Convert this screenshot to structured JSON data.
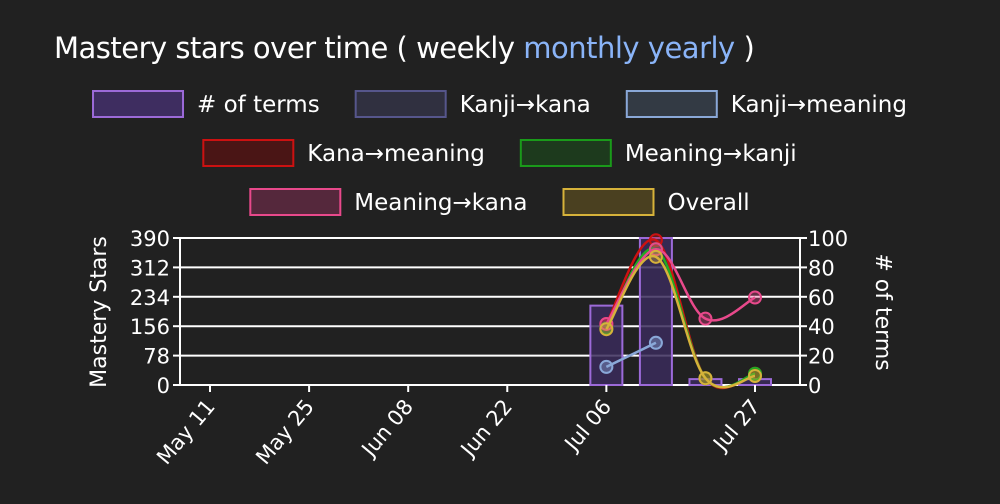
{
  "title": {
    "text": "Mastery stars over time",
    "open_paren": "(",
    "close_paren": ")",
    "periods": [
      "weekly",
      "monthly",
      "yearly"
    ],
    "active_period": "weekly"
  },
  "chart_data": {
    "type": "bar+line",
    "title": "Mastery stars over time",
    "categories": [
      "May 11",
      "May 25",
      "Jun 08",
      "Jun 22",
      "Jul 06",
      "Jul 27"
    ],
    "y_left": {
      "label": "Mastery Stars",
      "ticks": [
        0,
        78,
        156,
        234,
        312,
        390
      ],
      "range": [
        0,
        390
      ]
    },
    "y_right": {
      "label": "# of terms",
      "ticks": [
        0,
        20,
        40,
        60,
        80,
        100
      ],
      "range": [
        0,
        100
      ]
    },
    "x_ticks": [
      "May 11",
      "May 25",
      "Jun 08",
      "Jun 22",
      "Jul 06",
      "Jul 27"
    ],
    "x_tick_dates": [
      0,
      14,
      28,
      42,
      56,
      77
    ],
    "bar_series": {
      "name": "# of terms",
      "axis": "right",
      "color": "#9c6ad8",
      "x_dates": [
        56,
        63,
        70,
        77
      ],
      "values": [
        54,
        100,
        4,
        4
      ]
    },
    "line_series": [
      {
        "name": "Kanji→kana",
        "color": "#4a4a80",
        "x_dates": [
          56,
          63
        ],
        "values": [
          48,
          112
        ]
      },
      {
        "name": "Kanji→meaning",
        "color": "#8aa8d8",
        "x_dates": [
          56,
          63
        ],
        "values": [
          48,
          112
        ]
      },
      {
        "name": "Kana→meaning",
        "color": "#cc1111",
        "x_dates": [
          56,
          63,
          70,
          77
        ],
        "values": [
          162,
          384,
          18,
          30
        ]
      },
      {
        "name": "Meaning→kanji",
        "color": "#22aa22",
        "x_dates": [
          56,
          63,
          70,
          77
        ],
        "values": [
          150,
          360,
          18,
          30
        ]
      },
      {
        "name": "Meaning→kana",
        "color": "#e8498b",
        "x_dates": [
          56,
          63,
          70,
          77
        ],
        "values": [
          162,
          360,
          176,
          232
        ]
      },
      {
        "name": "Overall",
        "color": "#d6b23a",
        "x_dates": [
          56,
          63,
          70,
          77
        ],
        "values": [
          148,
          340,
          18,
          24
        ]
      }
    ],
    "legend": {
      "placement": "top",
      "items": [
        {
          "label": "# of terms",
          "border": "#9c6ad8",
          "fill": "#3e2d60"
        },
        {
          "label": "Kanji→kana",
          "border": "#56568c",
          "fill": "#303040"
        },
        {
          "label": "Kanji→meaning",
          "border": "#8aa8d8",
          "fill": "#333a44"
        },
        {
          "label": "Kana→meaning",
          "border": "#cc1111",
          "fill": "#4a1515"
        },
        {
          "label": "Meaning→kanji",
          "border": "#1a9a1a",
          "fill": "#1d3a1d"
        },
        {
          "label": "Meaning→kana",
          "border": "#e8498b",
          "fill": "#55283c"
        },
        {
          "label": "Overall",
          "border": "#d6b23a",
          "fill": "#4a4020"
        }
      ]
    },
    "grid": true
  }
}
